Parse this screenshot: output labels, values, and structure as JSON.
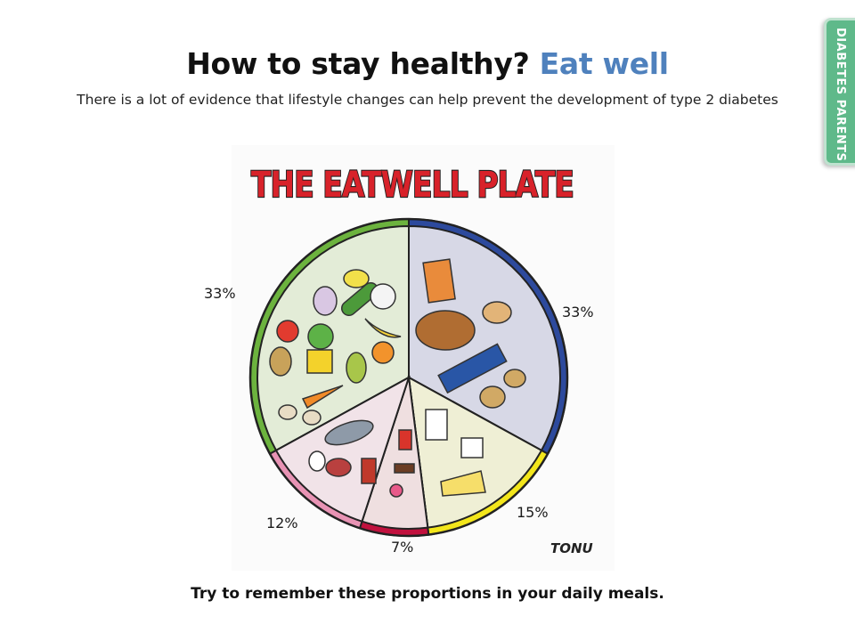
{
  "page": {
    "title_main": "How to stay healthy?",
    "title_accent": "Eat well",
    "subtitle": "There is a lot of evidence that lifestyle changes can help prevent the development of type 2 diabetes",
    "footer": "Try to remember these proportions in your daily meals.",
    "tab_label": "DIABETES PARENTS",
    "plate_signature": "TONU"
  },
  "chart_data": {
    "type": "pie",
    "title": "THE EATWELL PLATE",
    "slices": [
      {
        "label": "33%",
        "value": 33,
        "fill": "#e3ecd7",
        "rim": "#6cb33e"
      },
      {
        "label": "33%",
        "value": 33,
        "fill": "#d7d8e6",
        "rim": "#2d4a9d"
      },
      {
        "label": "15%",
        "value": 15,
        "fill": "#efefd5",
        "rim": "#f3e61b"
      },
      {
        "label": "7%",
        "value": 7,
        "fill": "#efdfe0",
        "rim": "#c1113e"
      },
      {
        "label": "12%",
        "value": 12,
        "fill": "#f1e3e8",
        "rim": "#e893b4"
      }
    ],
    "colors": {
      "title_red": "#d8222a",
      "outline": "#222222"
    }
  }
}
